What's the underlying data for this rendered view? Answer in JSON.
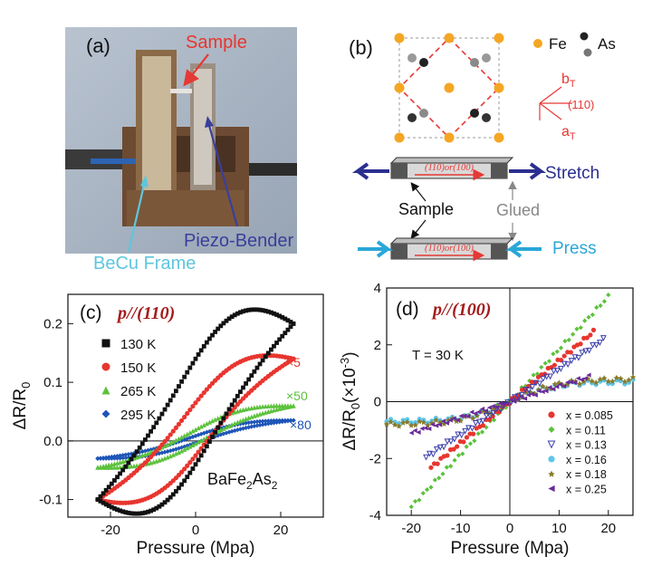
{
  "panel_a": {
    "label": "(a)",
    "annotations": {
      "sample": "Sample",
      "piezo": "Piezo-Bender",
      "frame": "BeCu Frame"
    },
    "colors": {
      "sample": "#e8352f",
      "piezo": "#3a3f9c",
      "frame": "#5fc6dd"
    }
  },
  "panel_b": {
    "label": "(b)",
    "legend": {
      "fe": "Fe",
      "as": "As"
    },
    "axes": {
      "b": "b",
      "a": "a",
      "sub": "T",
      "dir": "(110)"
    },
    "bar_label_top": "(110)or(100)",
    "bar_label_bottom": "(110)or(100)",
    "stretch": "Stretch",
    "press": "Press",
    "sample": "Sample",
    "glued": "Glued",
    "colors": {
      "fe": "#f5a623",
      "as": "#222222",
      "stretch": "#2b2f8f",
      "press": "#2aa7d8",
      "red": "#e53935"
    }
  },
  "chart_data": [
    {
      "panel": "(c)",
      "type": "line",
      "title": "p//(110)",
      "xlabel": "Pressure (Mpa)",
      "ylabel": "ΔR/R",
      "ylabel_sub": "0",
      "xlim": [
        -30,
        30
      ],
      "ylim": [
        -0.13,
        0.25
      ],
      "xticks": [
        -20,
        0,
        20
      ],
      "yticks": [
        -0.1,
        0.0,
        0.1,
        0.2
      ],
      "ytick_labels": [
        "-0.1",
        "0.0",
        "0.1",
        "0.2"
      ],
      "xtick_labels": [
        "-20",
        "0",
        "20"
      ],
      "compound": "BaFe",
      "compound_sub1": "2",
      "compound_mid": "As",
      "compound_sub2": "2",
      "scale_labels": [
        "×5",
        "×50",
        "×80"
      ],
      "series": [
        {
          "name": "130 K",
          "color": "#111111",
          "marker": "square",
          "x_range": [
            -23,
            23
          ],
          "loop": {
            "upper": [
              -0.1,
              0.2
            ],
            "lower": [
              -0.1,
              0.2
            ],
            "width": 0.09
          }
        },
        {
          "name": "150 K",
          "color": "#e8352f",
          "marker": "circle",
          "x_range": [
            -23,
            23
          ],
          "loop": {
            "upper": [
              -0.1,
              0.14
            ],
            "lower": [
              -0.1,
              0.14
            ],
            "width": 0.045
          }
        },
        {
          "name": "265 K",
          "color": "#5cc13c",
          "marker": "triangle",
          "x_range": [
            -23,
            23
          ],
          "loop": {
            "upper": [
              -0.045,
              0.06
            ],
            "lower": [
              -0.045,
              0.06
            ],
            "width": 0.012
          }
        },
        {
          "name": "295 K",
          "color": "#1e55b8",
          "marker": "diamond",
          "x_range": [
            -23,
            23
          ],
          "loop": {
            "upper": [
              -0.03,
              0.035
            ],
            "lower": [
              -0.03,
              0.035
            ],
            "width": 0.006
          }
        }
      ]
    },
    {
      "panel": "(d)",
      "type": "scatter",
      "title": "p//(100)",
      "xlabel": "Pressure (Mpa)",
      "ylabel": "ΔR/R",
      "ylabel_sub": "0",
      "ylabel_unit": "(×10",
      "ylabel_exp": "-3",
      "ylabel_end": ")",
      "annotation": "T = 30 K",
      "xlim": [
        -25,
        25
      ],
      "ylim": [
        -4,
        4
      ],
      "xticks": [
        -20,
        -10,
        0,
        10,
        20
      ],
      "yticks": [
        -4,
        -2,
        0,
        2,
        4
      ],
      "xtick_labels": [
        "-20",
        "-10",
        "0",
        "10",
        "20"
      ],
      "ytick_labels": [
        "-4",
        "-2",
        "0",
        "2",
        "4"
      ],
      "series": [
        {
          "name": "x = 0.085",
          "color": "#e8352f",
          "marker": "circle",
          "x_range": [
            -16,
            17
          ],
          "slope": 0.145,
          "sat": null
        },
        {
          "name": "x = 0.11",
          "color": "#5cc13c",
          "marker": "diamond",
          "x_range": [
            -20,
            20
          ],
          "slope": 0.185,
          "sat": null
        },
        {
          "name": "x = 0.13",
          "color": "#3a3faa",
          "marker": "triangle-down",
          "x_range": [
            -17,
            19
          ],
          "slope": 0.115,
          "sat": null
        },
        {
          "name": "x = 0.16",
          "color": "#5fc6e8",
          "marker": "circle",
          "x_range": [
            -25,
            25
          ],
          "slope": 0.08,
          "sat": 0.7
        },
        {
          "name": "x = 0.18",
          "color": "#8a7a2a",
          "marker": "star",
          "x_range": [
            -25,
            25
          ],
          "slope": 0.08,
          "sat": 0.8
        },
        {
          "name": "x = 0.25",
          "color": "#6a2a9a",
          "marker": "triangle-left",
          "x_range": [
            -20,
            16
          ],
          "slope": 0.055,
          "sat": null
        }
      ]
    }
  ]
}
